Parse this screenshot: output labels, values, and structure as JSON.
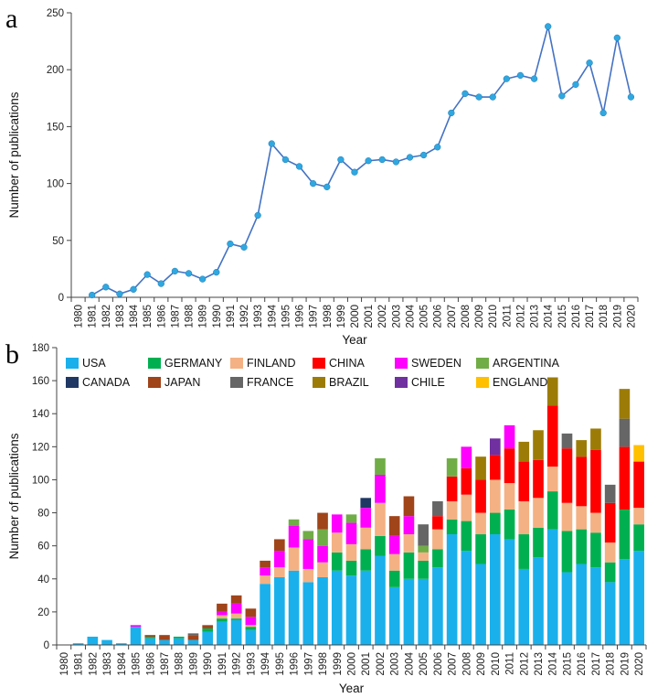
{
  "chart_data": [
    {
      "panel": "a",
      "type": "line",
      "xlabel": "Year",
      "ylabel": "Number of publications",
      "ylim": [
        0,
        250
      ],
      "yticks": [
        0,
        50,
        100,
        150,
        200,
        250
      ],
      "categories": [
        "1980",
        "1981",
        "1982",
        "1983",
        "1984",
        "1985",
        "1986",
        "1987",
        "1988",
        "1989",
        "1990",
        "1991",
        "1992",
        "1993",
        "1994",
        "1995",
        "1996",
        "1997",
        "1998",
        "1999",
        "2000",
        "2001",
        "2002",
        "2003",
        "2004",
        "2005",
        "2006",
        "2007",
        "2008",
        "2009",
        "2010",
        "2011",
        "2012",
        "2013",
        "2014",
        "2015",
        "2016",
        "2017",
        "2018",
        "2019",
        "2020"
      ],
      "series": [
        {
          "color": "#4472c4",
          "marker_color": "#2fa8e0",
          "values": [
            null,
            2,
            9,
            3,
            7,
            20,
            12,
            23,
            21,
            16,
            22,
            47,
            44,
            72,
            135,
            121,
            115,
            100,
            97,
            121,
            110,
            120,
            121,
            119,
            123,
            125,
            132,
            162,
            179,
            176,
            176,
            192,
            195,
            192,
            238,
            177,
            187,
            206,
            162,
            228,
            176
          ]
        }
      ],
      "grid": false
    },
    {
      "panel": "b",
      "type": "bar",
      "stacked": true,
      "xlabel": "Year",
      "ylabel": "Number of publications",
      "ylim": [
        0,
        180
      ],
      "yticks": [
        0,
        20,
        40,
        60,
        80,
        100,
        120,
        140,
        160,
        180
      ],
      "legend_position": "top",
      "categories": [
        "1980",
        "1981",
        "1982",
        "1983",
        "1984",
        "1985",
        "1986",
        "1987",
        "1988",
        "1989",
        "1990",
        "1991",
        "1992",
        "1993",
        "1994",
        "1995",
        "1996",
        "1997",
        "1998",
        "1999",
        "2000",
        "2001",
        "2002",
        "2003",
        "2004",
        "2005",
        "2006",
        "2007",
        "2008",
        "2009",
        "2010",
        "2011",
        "2012",
        "2013",
        "2014",
        "2015",
        "2016",
        "2017",
        "2018",
        "2019",
        "2020"
      ],
      "series": [
        {
          "name": "USA",
          "color": "#1ab0ec",
          "values": [
            0,
            1,
            5,
            3,
            1,
            11,
            4,
            3,
            4,
            3,
            8,
            14,
            15,
            9,
            37,
            41,
            45,
            38,
            41,
            45,
            42,
            45,
            54,
            35,
            40,
            40,
            47,
            67,
            57,
            49,
            67,
            64,
            46,
            53,
            70,
            44,
            49,
            47,
            38,
            52,
            57
          ]
        },
        {
          "name": "GERMANY",
          "color": "#00b050",
          "values": [
            0,
            0,
            0,
            0,
            0,
            0,
            1,
            0,
            1,
            0,
            2,
            2,
            1,
            2,
            0,
            0,
            0,
            0,
            0,
            11,
            9,
            13,
            12,
            10,
            16,
            11,
            11,
            9,
            18,
            18,
            13,
            18,
            21,
            18,
            23,
            25,
            21,
            21,
            12,
            30,
            16
          ]
        },
        {
          "name": "FINLAND",
          "color": "#f4b183",
          "values": [
            0,
            0,
            0,
            0,
            0,
            0,
            0,
            0,
            0,
            0,
            0,
            2,
            3,
            1,
            5,
            6,
            14,
            8,
            9,
            12,
            10,
            13,
            20,
            10,
            11,
            5,
            12,
            11,
            16,
            13,
            20,
            16,
            20,
            18,
            15,
            17,
            14,
            12,
            12,
            0,
            10
          ]
        },
        {
          "name": "CHINA",
          "color": "#ff0000",
          "values": [
            0,
            0,
            0,
            0,
            0,
            0,
            0,
            0,
            0,
            0,
            0,
            0,
            0,
            0,
            0,
            0,
            0,
            0,
            0,
            0,
            0,
            0,
            0,
            0,
            0,
            0,
            8,
            15,
            16,
            20,
            15,
            21,
            24,
            23,
            37,
            33,
            30,
            38,
            24,
            38,
            28
          ]
        },
        {
          "name": "SWEDEN",
          "color": "#ff00ff",
          "values": [
            0,
            0,
            0,
            0,
            0,
            1,
            0,
            0,
            0,
            0,
            0,
            2,
            6,
            5,
            5,
            10,
            13,
            18,
            10,
            11,
            13,
            12,
            17,
            11,
            11,
            0,
            0,
            0,
            13,
            0,
            0,
            14,
            0,
            0,
            0,
            0,
            0,
            0,
            0,
            0,
            0
          ]
        },
        {
          "name": "ARGENTINA",
          "color": "#70ad47",
          "values": [
            0,
            0,
            0,
            0,
            0,
            0,
            0,
            0,
            0,
            0,
            0,
            0,
            0,
            0,
            0,
            0,
            4,
            5,
            10,
            0,
            5,
            0,
            10,
            0,
            0,
            4,
            0,
            11,
            0,
            0,
            0,
            0,
            0,
            0,
            0,
            0,
            0,
            0,
            0,
            0,
            0
          ]
        },
        {
          "name": "CANADA",
          "color": "#1f3864",
          "values": [
            0,
            0,
            0,
            0,
            0,
            0,
            0,
            0,
            0,
            0,
            0,
            0,
            0,
            0,
            0,
            0,
            0,
            0,
            0,
            0,
            0,
            6,
            0,
            0,
            0,
            0,
            0,
            0,
            0,
            0,
            0,
            0,
            0,
            0,
            0,
            0,
            0,
            0,
            0,
            0,
            0
          ]
        },
        {
          "name": "JAPAN",
          "color": "#a0441a",
          "values": [
            0,
            0,
            0,
            0,
            0,
            0,
            1,
            3,
            0,
            3,
            2,
            5,
            5,
            5,
            4,
            7,
            0,
            0,
            10,
            0,
            0,
            0,
            0,
            12,
            12,
            0,
            0,
            0,
            0,
            0,
            0,
            0,
            0,
            0,
            0,
            0,
            0,
            0,
            0,
            0,
            0
          ]
        },
        {
          "name": "FRANCE",
          "color": "#666666",
          "values": [
            0,
            0,
            0,
            0,
            0,
            0,
            0,
            0,
            0,
            1,
            0,
            0,
            0,
            0,
            0,
            0,
            0,
            0,
            0,
            0,
            0,
            0,
            0,
            0,
            0,
            13,
            9,
            0,
            0,
            0,
            0,
            0,
            0,
            0,
            0,
            9,
            0,
            0,
            11,
            17,
            0
          ]
        },
        {
          "name": "BRAZIL",
          "color": "#9c7c06",
          "values": [
            0,
            0,
            0,
            0,
            0,
            0,
            0,
            0,
            0,
            0,
            0,
            0,
            0,
            0,
            0,
            0,
            0,
            0,
            0,
            0,
            0,
            0,
            0,
            0,
            0,
            0,
            0,
            0,
            0,
            14,
            0,
            0,
            12,
            18,
            17,
            0,
            10,
            13,
            0,
            18,
            0
          ]
        },
        {
          "name": "CHILE",
          "color": "#7030a0",
          "values": [
            0,
            0,
            0,
            0,
            0,
            0,
            0,
            0,
            0,
            0,
            0,
            0,
            0,
            0,
            0,
            0,
            0,
            0,
            0,
            0,
            0,
            0,
            0,
            0,
            0,
            0,
            0,
            0,
            0,
            0,
            10,
            0,
            0,
            0,
            0,
            0,
            0,
            0,
            0,
            0,
            0
          ]
        },
        {
          "name": "ENGLAND",
          "color": "#ffc000",
          "values": [
            0,
            0,
            0,
            0,
            0,
            0,
            0,
            0,
            0,
            0,
            0,
            0,
            0,
            0,
            0,
            0,
            0,
            0,
            0,
            0,
            0,
            0,
            0,
            0,
            0,
            0,
            0,
            0,
            0,
            0,
            0,
            0,
            0,
            0,
            0,
            0,
            0,
            0,
            0,
            0,
            10
          ]
        }
      ],
      "grid": false
    }
  ]
}
